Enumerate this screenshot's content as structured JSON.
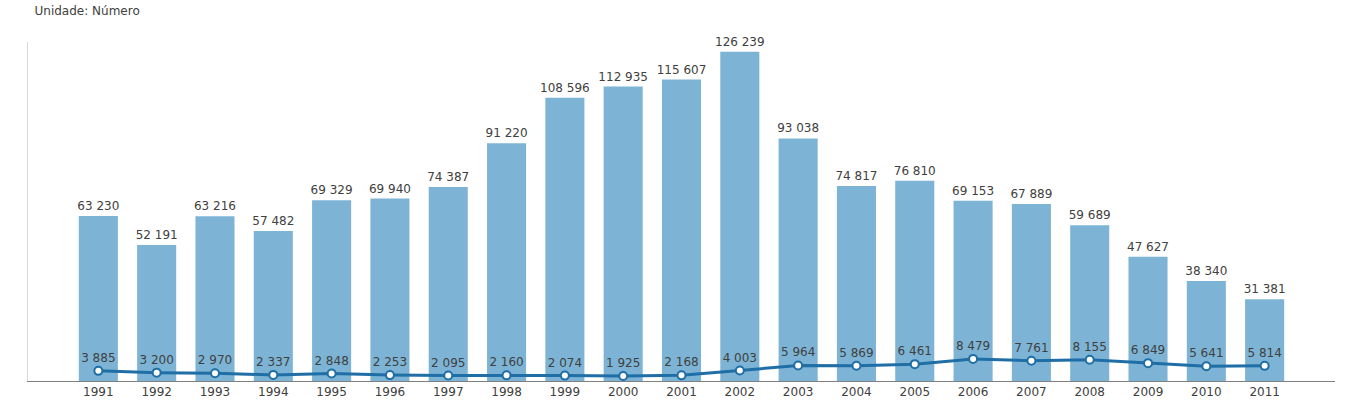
{
  "chart_data": {
    "type": "bar",
    "title": "Unidade: Número",
    "categories": [
      "1991",
      "1992",
      "1993",
      "1994",
      "1995",
      "1996",
      "1997",
      "1998",
      "1999",
      "2000",
      "2001",
      "2002",
      "2003",
      "2004",
      "2005",
      "2006",
      "2007",
      "2008",
      "2009",
      "2010",
      "2011"
    ],
    "series": [
      {
        "type": "bar",
        "color": "#7db4d5",
        "values": [
          63230,
          52191,
          63216,
          57482,
          69329,
          69940,
          74387,
          91220,
          108596,
          112935,
          115607,
          126239,
          93038,
          74817,
          76810,
          69153,
          67889,
          59689,
          47627,
          38340,
          31381
        ],
        "value_labels": [
          "63 230",
          "52 191",
          "63 216",
          "57 482",
          "69 329",
          "69 940",
          "74 387",
          "91 220",
          "108 596",
          "112 935",
          "115 607",
          "126 239",
          "93 038",
          "74 817",
          "76 810",
          "69 153",
          "67 889",
          "59 689",
          "47 627",
          "38 340",
          "31 381"
        ]
      },
      {
        "type": "line",
        "color": "#1f6ea6",
        "marker": "circle",
        "values": [
          3885,
          3200,
          2970,
          2337,
          2848,
          2253,
          2095,
          2160,
          2074,
          1925,
          2168,
          4003,
          5964,
          5869,
          6461,
          8479,
          7761,
          8155,
          6849,
          5641,
          5814
        ],
        "value_labels": [
          "3 885",
          "3 200",
          "2 970",
          "2 337",
          "2 848",
          "2 253",
          "2 095",
          "2 160",
          "2 074",
          "1 925",
          "2 168",
          "4 003",
          "5 964",
          "5 869",
          "6 461",
          "8 479",
          "7 761",
          "8 155",
          "6 849",
          "5 641",
          "5 814"
        ]
      }
    ],
    "ylim": [
      0,
      130000
    ],
    "grid": false,
    "data_labels": true,
    "tick_labels": "x"
  }
}
